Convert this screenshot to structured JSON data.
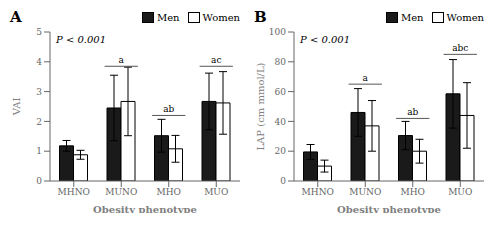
{
  "chart_data": [
    {
      "type": "bar",
      "title": "A",
      "x_label": "Obesity phenotype",
      "y_label": "VAI",
      "categories": [
        "MHNO",
        "MUNO",
        "MHO",
        "MUO"
      ],
      "series": [
        {
          "name": "Men",
          "color": "#1a1a1a",
          "values": [
            1.18,
            2.45,
            1.52,
            2.67
          ],
          "errors": [
            0.18,
            1.1,
            0.55,
            0.95
          ]
        },
        {
          "name": "Women",
          "color": "#ffffff",
          "values": [
            0.88,
            2.67,
            1.08,
            2.62
          ],
          "errors": [
            0.15,
            1.15,
            0.45,
            1.05
          ]
        }
      ],
      "ylim": [
        0,
        5
      ],
      "yticks": [
        0,
        1,
        2,
        3,
        4,
        5
      ],
      "legend": "upper right",
      "annotations": [
        {
          "text": "P < 0.001"
        },
        {
          "category": "MUNO",
          "y": 3.85,
          "text": "a"
        },
        {
          "category": "MHO",
          "y": 2.2,
          "text": "ab"
        },
        {
          "category": "MUO",
          "y": 3.85,
          "text": "ac"
        }
      ]
    },
    {
      "type": "bar",
      "title": "B",
      "x_label": "Obesity phenotype",
      "y_label": "LAP (cm mmol/L)",
      "categories": [
        "MHNO",
        "MUNO",
        "MHO",
        "MUO"
      ],
      "series": [
        {
          "name": "Men",
          "color": "#1a1a1a",
          "values": [
            19.5,
            46.0,
            30.5,
            58.5
          ],
          "errors": [
            5.0,
            16.0,
            9.5,
            23.0
          ]
        },
        {
          "name": "Women",
          "color": "#ffffff",
          "values": [
            10.0,
            37.0,
            20.0,
            44.0
          ],
          "errors": [
            4.0,
            17.0,
            8.0,
            22.0
          ]
        }
      ],
      "ylim": [
        0,
        100
      ],
      "yticks": [
        0,
        20,
        40,
        60,
        80,
        100
      ],
      "legend": "upper right",
      "annotations": [
        {
          "text": "P < 0.001"
        },
        {
          "category": "MUNO",
          "y": 65,
          "text": "a"
        },
        {
          "category": "MHO",
          "y": 42,
          "text": "ab"
        },
        {
          "category": "MUO",
          "y": 85,
          "text": "abc"
        }
      ]
    }
  ]
}
